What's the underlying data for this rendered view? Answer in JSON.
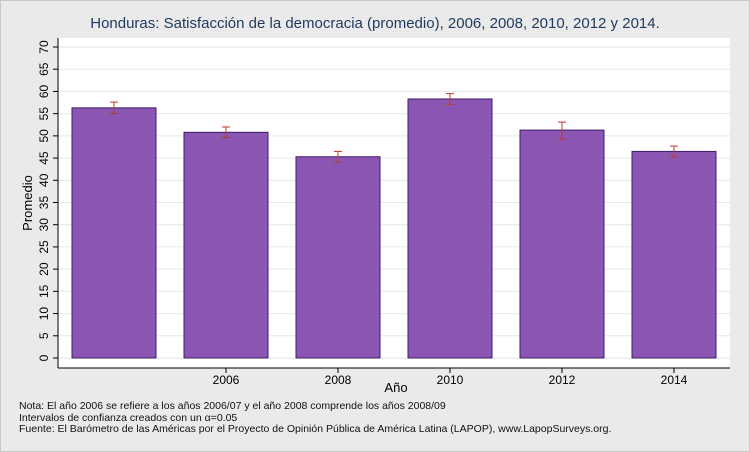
{
  "chart_data": {
    "type": "bar",
    "title": "Honduras: Satisfacción de la democracia (promedio), 2006, 2008, 2010, 2012 y 2014.",
    "xlabel": "Año",
    "ylabel": "Promedio",
    "categories": [
      "",
      "2006",
      "2008",
      "2010",
      "2012",
      "2014"
    ],
    "values": [
      56.3,
      50.8,
      45.3,
      58.3,
      51.3,
      46.5
    ],
    "error_low": [
      55.0,
      49.6,
      44.1,
      57.1,
      49.3,
      45.3
    ],
    "error_high": [
      57.6,
      52.0,
      46.5,
      59.5,
      53.1,
      47.7
    ],
    "ylim": [
      0,
      70
    ],
    "yticks": [
      0,
      5,
      10,
      15,
      20,
      25,
      30,
      35,
      40,
      45,
      50,
      55,
      60,
      65,
      70
    ],
    "grid": true,
    "colors": {
      "bar": "#8b55b3",
      "bar_edge": "#3e1e66",
      "error_bar": "#c0392b",
      "background": "#eaeaea",
      "plot_background": "#ffffff",
      "title": "#1f3a5f"
    }
  },
  "notes": [
    "Nota: El año 2006 se refiere a los años 2006/07 y el año 2008 comprende los años 2008/09",
    "Intervalos de confianza creados con un α=0.05",
    "Fuente: El Barómetro de las Américas por el Proyecto de Opinión Pública de América Latina (LAPOP), www.LapopSurveys.org."
  ]
}
